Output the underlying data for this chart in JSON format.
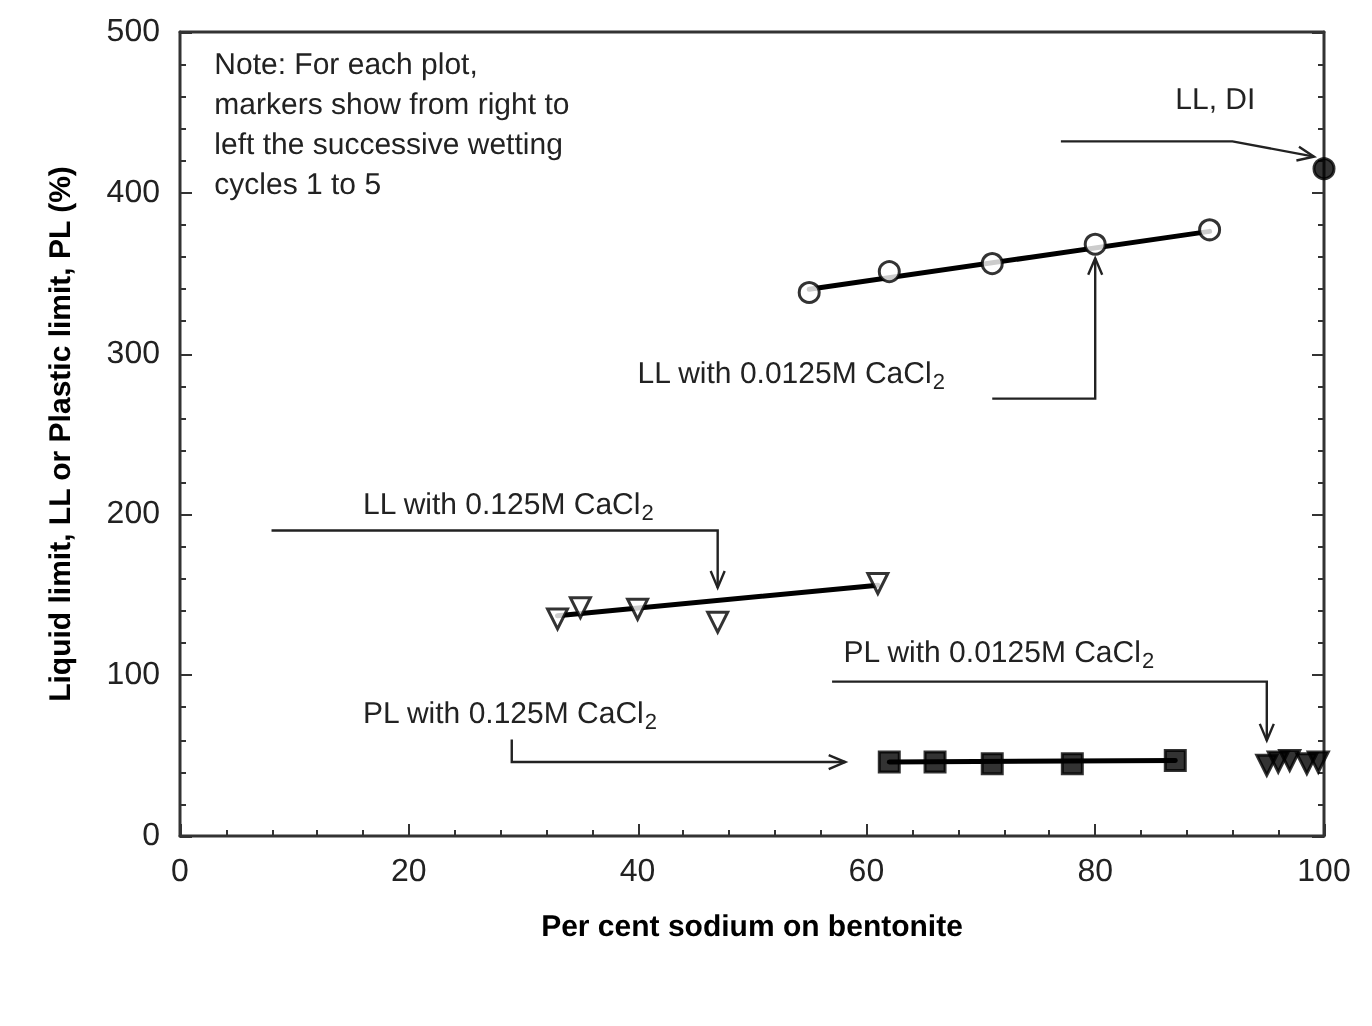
{
  "chart_data": {
    "type": "scatter",
    "xlabel": "Per cent sodium on bentonite",
    "ylabel": "Liquid limit, LL or Plastic limit, PL (%)",
    "xlim": [
      0,
      100
    ],
    "ylim": [
      0,
      500
    ],
    "xticks": [
      0,
      20,
      40,
      60,
      80,
      100
    ],
    "yticks": [
      0,
      100,
      200,
      300,
      400,
      500
    ],
    "grid": false,
    "series": [
      {
        "color": "#000000",
        "marker": "circle",
        "x": [
          100
        ],
        "values": [
          415
        ]
      },
      {
        "color": "#000000",
        "marker": "circle",
        "x": [
          55,
          62,
          71,
          80,
          90
        ],
        "values": [
          338,
          351,
          356,
          368,
          377
        ]
      },
      {
        "type": "line",
        "color": "#000000",
        "marker": "none",
        "x": [
          55,
          90
        ],
        "values": [
          340,
          376
        ]
      },
      {
        "color": "#000000",
        "marker": "triangle",
        "x": [
          33,
          35,
          40,
          47,
          61
        ],
        "values": [
          135,
          142,
          141,
          133,
          157
        ]
      },
      {
        "type": "line",
        "color": "#000000",
        "marker": "none",
        "x": [
          33,
          61
        ],
        "values": [
          137,
          156
        ]
      },
      {
        "color": "#000000",
        "marker": "square",
        "x": [
          62,
          66,
          71,
          78,
          87
        ],
        "values": [
          46,
          46,
          45,
          45,
          47
        ]
      },
      {
        "type": "line",
        "color": "#000000",
        "marker": "none",
        "x": [
          62,
          87
        ],
        "values": [
          46,
          47
        ]
      },
      {
        "color": "#000000",
        "marker": "triangle",
        "x": [
          95,
          96,
          97,
          98.5,
          99.5
        ],
        "values": [
          44,
          46,
          47,
          45,
          46
        ]
      }
    ],
    "annotations": [
      "Note: For each plot, markers show from right to left the successive wetting cycles 1 to 5",
      {
        "text": "LL, DI",
        "x": 100,
        "y": 415
      },
      "LL with 0.0125M CaCl$_{2}$",
      "LL with 0.125M CaCl$_{2}$",
      "PL with 0.0125M CaCl$_{2}$",
      "PL with 0.125M CaCl$_{2}$"
    ]
  }
}
